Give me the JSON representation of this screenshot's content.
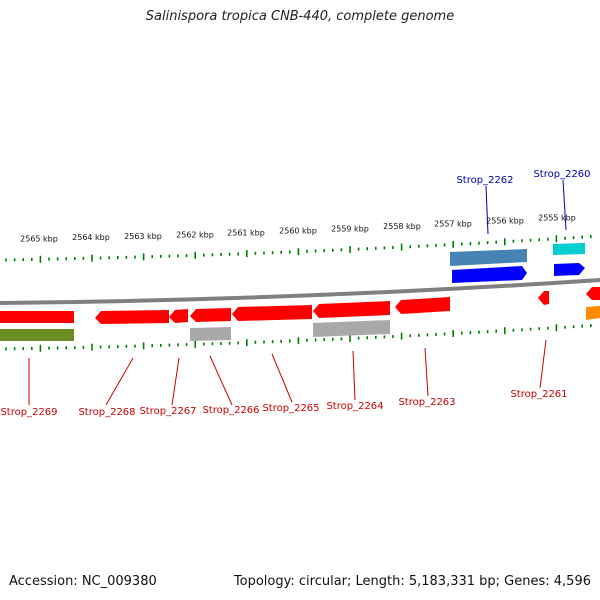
{
  "title": "Salinispora tropica CNB-440, complete genome",
  "footer": {
    "accession": "Accession: NC_009380",
    "summary": "Topology: circular; Length: 5,183,331 bp; Genes: 4,596"
  },
  "scale_labels": [
    "2565 kbp",
    "2564 kbp",
    "2563 kbp",
    "2562 kbp",
    "2561 kbp",
    "2560 kbp",
    "2559 kbp",
    "2558 kbp",
    "2557 kbp",
    "2556 kbp",
    "2555 kbp"
  ],
  "genes_top": [
    "Strop_2262",
    "Strop_2260"
  ],
  "genes_bottom": [
    "Strop_2269",
    "Strop_2268",
    "Strop_2267",
    "Strop_2266",
    "Strop_2265",
    "Strop_2264",
    "Strop_2263",
    "Strop_2261"
  ],
  "colors": {
    "cds": "#ff0000",
    "gene_top": "#0000ff",
    "gene_top_bar": "#4682b4",
    "gene_bottom_bar": "#a9a9a9",
    "misc_feature": "#6b8e23",
    "tick": "#008000",
    "backbone": "#808080"
  }
}
